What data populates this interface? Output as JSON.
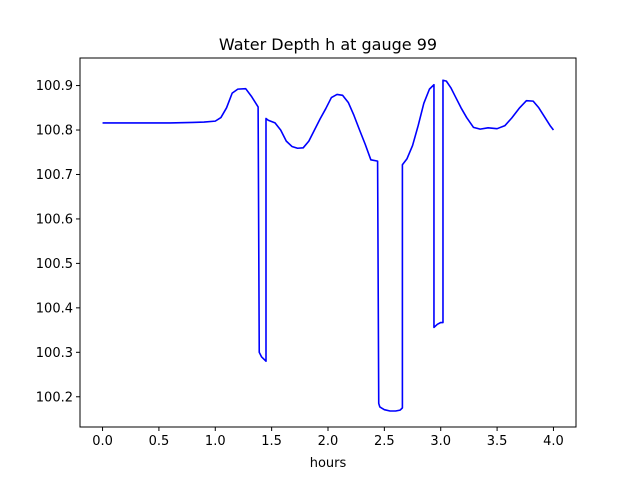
{
  "chart_data": {
    "type": "line",
    "title": "Water Depth h at gauge 99",
    "xlabel": "hours",
    "ylabel": "",
    "xlim": [
      -0.2,
      4.2
    ],
    "ylim": [
      100.132,
      100.962
    ],
    "x_ticks": [
      0.0,
      0.5,
      1.0,
      1.5,
      2.0,
      2.5,
      3.0,
      3.5,
      4.0
    ],
    "x_tick_labels": [
      "0.0",
      "0.5",
      "1.0",
      "1.5",
      "2.0",
      "2.5",
      "3.0",
      "3.5",
      "4.0"
    ],
    "y_ticks": [
      100.2,
      100.3,
      100.4,
      100.5,
      100.6,
      100.7,
      100.8,
      100.9
    ],
    "y_tick_labels": [
      "100.2",
      "100.3",
      "100.4",
      "100.5",
      "100.6",
      "100.7",
      "100.8",
      "100.9"
    ],
    "grid": false,
    "legend": null,
    "series": [
      {
        "color": "#0000ff",
        "x": [
          0.0,
          0.2,
          0.4,
          0.6,
          0.8,
          0.9,
          1.0,
          1.05,
          1.1,
          1.15,
          1.2,
          1.27,
          1.32,
          1.38,
          1.39,
          1.41,
          1.45,
          1.45,
          1.47,
          1.53,
          1.58,
          1.63,
          1.68,
          1.73,
          1.78,
          1.83,
          1.88,
          1.93,
          1.98,
          2.03,
          2.08,
          2.13,
          2.18,
          2.23,
          2.28,
          2.33,
          2.38,
          2.44,
          2.45,
          2.46,
          2.5,
          2.55,
          2.6,
          2.64,
          2.66,
          2.66,
          2.7,
          2.75,
          2.8,
          2.85,
          2.9,
          2.94,
          2.94,
          2.97,
          3.0,
          3.02,
          3.02,
          3.05,
          3.09,
          3.13,
          3.18,
          3.23,
          3.29,
          3.35,
          3.42,
          3.5,
          3.57,
          3.63,
          3.7,
          3.76,
          3.82,
          3.87,
          3.92,
          3.97,
          4.0
        ],
        "y": [
          100.816,
          100.816,
          100.816,
          100.816,
          100.817,
          100.818,
          100.82,
          100.828,
          100.85,
          100.883,
          100.892,
          100.893,
          100.876,
          100.852,
          100.3,
          100.29,
          100.28,
          100.826,
          100.822,
          100.816,
          100.8,
          100.775,
          100.763,
          100.759,
          100.76,
          100.775,
          100.8,
          100.825,
          100.848,
          100.873,
          100.88,
          100.878,
          100.862,
          100.833,
          100.8,
          100.768,
          100.733,
          100.73,
          100.185,
          100.177,
          100.171,
          100.168,
          100.168,
          100.17,
          100.175,
          100.722,
          100.735,
          100.765,
          100.81,
          100.86,
          100.892,
          100.902,
          100.356,
          100.363,
          100.367,
          100.367,
          100.912,
          100.91,
          100.895,
          100.875,
          100.85,
          100.828,
          100.806,
          100.802,
          100.805,
          100.803,
          100.81,
          100.827,
          100.85,
          100.866,
          100.865,
          100.85,
          100.83,
          100.81,
          100.8
        ]
      }
    ]
  }
}
